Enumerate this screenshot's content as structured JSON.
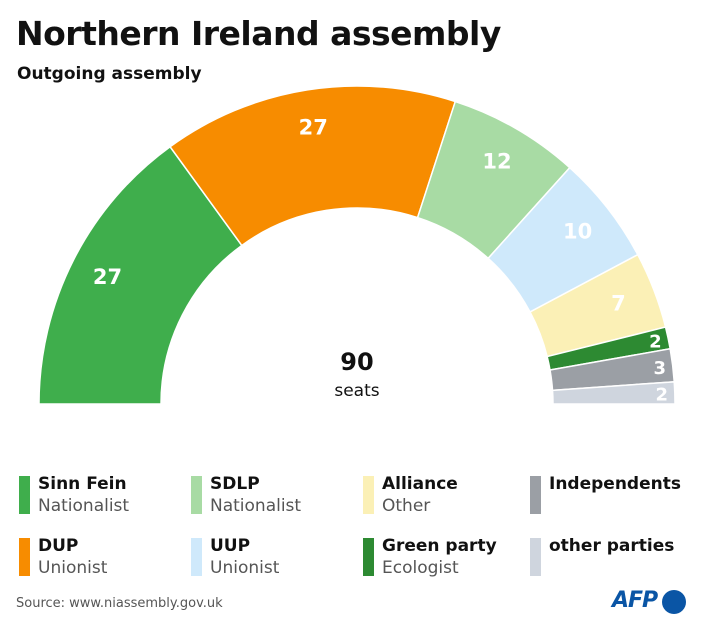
{
  "header": {
    "title": "Northern Ireland assembly",
    "subtitle": "Outgoing assembly"
  },
  "chart_data": {
    "type": "pie",
    "title": "Northern Ireland assembly",
    "subtitle": "Outgoing assembly",
    "total": 90,
    "total_label": "90",
    "total_unit": "seats",
    "slices": [
      {
        "party": "Sinn Fein",
        "group": "Nationalist",
        "seats": 27,
        "color": "#3fae4c",
        "label_color": "#ffffff"
      },
      {
        "party": "DUP",
        "group": "Unionist",
        "seats": 27,
        "color": "#f78c00",
        "label_color": "#ffffff"
      },
      {
        "party": "SDLP",
        "group": "Nationalist",
        "seats": 12,
        "color": "#a8dba4",
        "label_color": "#ffffff"
      },
      {
        "party": "UUP",
        "group": "Unionist",
        "seats": 10,
        "color": "#cfe9fb",
        "label_color": "#ffffff"
      },
      {
        "party": "Alliance",
        "group": "Other",
        "seats": 7,
        "color": "#fbf0b6",
        "label_color": "#ffffff"
      },
      {
        "party": "Green party",
        "group": "Ecologist",
        "seats": 2,
        "color": "#2d8a32",
        "label_color": "#ffffff"
      },
      {
        "party": "Independents",
        "group": "",
        "seats": 3,
        "color": "#9b9fa5",
        "label_color": "#ffffff"
      },
      {
        "party": "other parties",
        "group": "",
        "seats": 2,
        "color": "#cfd5de",
        "label_color": "#ffffff"
      }
    ]
  },
  "legend": [
    {
      "name": "Sinn Fein",
      "group": "Nationalist",
      "color": "#3fae4c"
    },
    {
      "name": "SDLP",
      "group": "Nationalist",
      "color": "#a8dba4"
    },
    {
      "name": "Alliance",
      "group": "Other",
      "color": "#fbf0b6"
    },
    {
      "name": "Independents",
      "group": "",
      "color": "#9b9fa5"
    },
    {
      "name": "DUP",
      "group": "Unionist",
      "color": "#f78c00"
    },
    {
      "name": "UUP",
      "group": "Unionist",
      "color": "#cfe9fb"
    },
    {
      "name": "Green party",
      "group": "Ecologist",
      "color": "#2d8a32"
    },
    {
      "name": "other parties",
      "group": "",
      "color": "#cfd5de"
    }
  ],
  "footer": {
    "source": "Source: www.niassembly.gov.uk",
    "logo": "AFP"
  }
}
